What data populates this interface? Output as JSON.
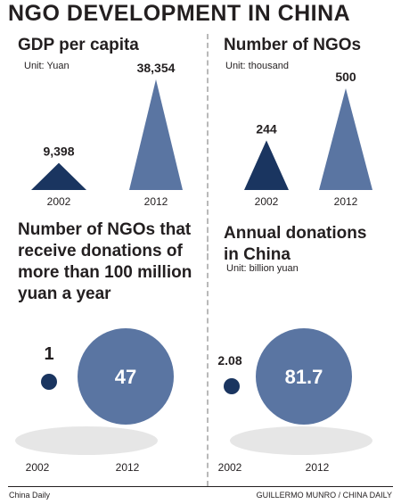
{
  "title": "NGO DEVELOPMENT IN CHINA",
  "colors": {
    "shape": "#5a75a2",
    "shape_dark": "#1a3560",
    "shadow": "#e6e6e6",
    "divider": "#b9b9b9",
    "text": "#231f20"
  },
  "chart_data": [
    {
      "type": "bar",
      "title": "GDP per capita",
      "subtitle": "Unit: Yuan",
      "categories": [
        "2002",
        "2012"
      ],
      "values": [
        9398,
        38354
      ],
      "value_labels": [
        "9,398",
        "38,354"
      ],
      "mark_shape": "triangle"
    },
    {
      "type": "bar",
      "title": "Number of NGOs",
      "subtitle": "Unit: thousand",
      "categories": [
        "2002",
        "2012"
      ],
      "values": [
        244,
        500
      ],
      "value_labels": [
        "244",
        "500"
      ],
      "mark_shape": "triangle"
    },
    {
      "type": "bubble",
      "title": "Number of NGOs that receive donations of more than 100 million yuan a year",
      "title_lines": [
        "Number of NGOs that",
        "receive donations of",
        "more than 100 million",
        "yuan a year"
      ],
      "categories": [
        "2002",
        "2012"
      ],
      "values": [
        1,
        47
      ],
      "value_labels": [
        "1",
        "47"
      ]
    },
    {
      "type": "bubble",
      "title": "Annual donations in China",
      "title_lines": [
        "Annual donations",
        "in China"
      ],
      "subtitle": "Unit: billion yuan",
      "categories": [
        "2002",
        "2012"
      ],
      "values": [
        2.08,
        81.7
      ],
      "value_labels": [
        "2.08",
        "81.7"
      ]
    }
  ],
  "footer": {
    "left": "China Daily",
    "right": "GUILLERMO MUNRO / CHINA DAILY"
  }
}
